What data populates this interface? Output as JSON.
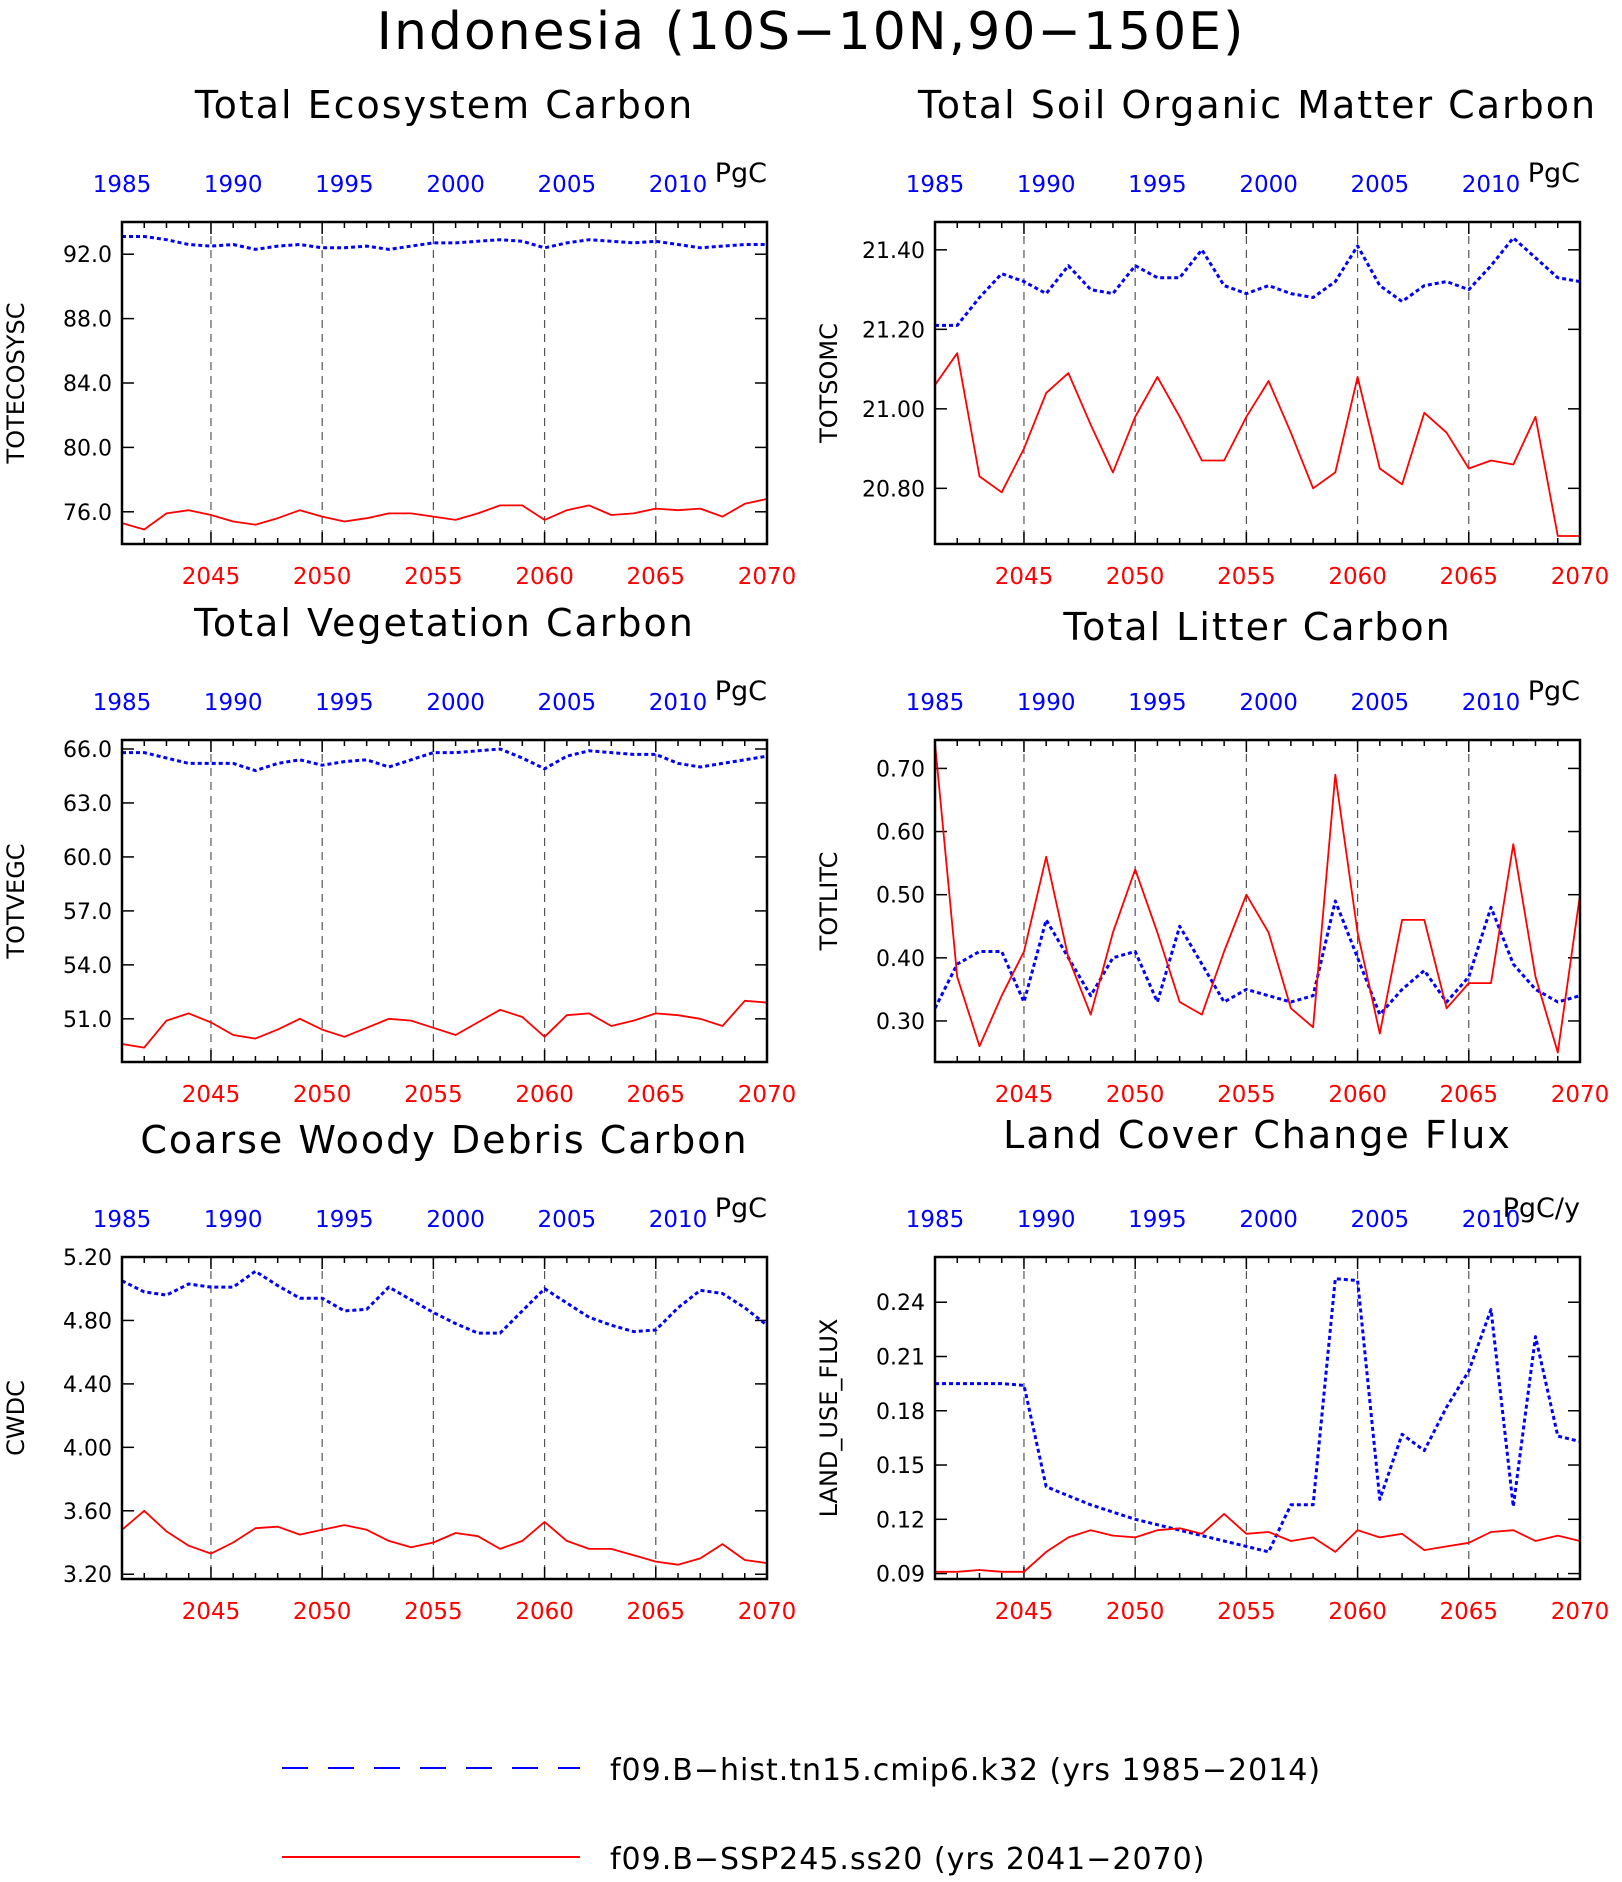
{
  "figure": {
    "title": "Indonesia (10S−10N,90−150E)"
  },
  "colors": {
    "hist": "#0000ff",
    "ssp": "#ff0000",
    "axis": "#000000"
  },
  "legend": {
    "items": [
      {
        "label": "f09.B−hist.tn15.cmip6.k32 (yrs 1985−2014)",
        "style": "dashed",
        "color": "#0000ff"
      },
      {
        "label": "f09.B−SSP245.ss20 (yrs 2041−2070)",
        "style": "solid",
        "color": "#ff0000"
      }
    ]
  },
  "chart_data": [
    {
      "type": "line",
      "title": "Total Ecosystem Carbon",
      "ylabel": "TOTECOSYSC",
      "units": "PgC",
      "top_xticks": [
        "1985",
        "1990",
        "1995",
        "2000",
        "2005",
        "2010"
      ],
      "bottom_xticks": [
        "2045",
        "2050",
        "2055",
        "2060",
        "2065",
        "2070"
      ],
      "yticks": [
        "76.0",
        "80.0",
        "84.0",
        "88.0",
        "92.0"
      ],
      "ylim": [
        74.0,
        94.0
      ],
      "series": [
        {
          "values": [
            93.1,
            93.1,
            92.9,
            92.6,
            92.5,
            92.6,
            92.3,
            92.5,
            92.6,
            92.4,
            92.4,
            92.5,
            92.3,
            92.5,
            92.7,
            92.7,
            92.8,
            92.9,
            92.8,
            92.4,
            92.7,
            92.9,
            92.8,
            92.7,
            92.8,
            92.6,
            92.4,
            92.5,
            92.6,
            92.6
          ]
        },
        {
          "values": [
            75.3,
            74.9,
            75.9,
            76.1,
            75.8,
            75.4,
            75.2,
            75.6,
            76.1,
            75.7,
            75.4,
            75.6,
            75.9,
            75.9,
            75.7,
            75.5,
            75.9,
            76.4,
            76.4,
            75.5,
            76.1,
            76.4,
            75.8,
            75.9,
            76.2,
            76.1,
            76.2,
            75.7,
            76.5,
            76.8
          ]
        }
      ]
    },
    {
      "type": "line",
      "title": "Total Soil Organic Matter Carbon",
      "ylabel": "TOTSOMC",
      "units": "PgC",
      "top_xticks": [
        "1985",
        "1990",
        "1995",
        "2000",
        "2005",
        "2010"
      ],
      "bottom_xticks": [
        "2045",
        "2050",
        "2055",
        "2060",
        "2065",
        "2070"
      ],
      "yticks": [
        "20.80",
        "21.00",
        "21.20",
        "21.40"
      ],
      "ylim": [
        20.66,
        21.47
      ],
      "series": [
        {
          "values": [
            21.21,
            21.21,
            21.28,
            21.34,
            21.32,
            21.29,
            21.36,
            21.3,
            21.29,
            21.36,
            21.33,
            21.33,
            21.4,
            21.31,
            21.29,
            21.31,
            21.29,
            21.28,
            21.32,
            21.41,
            21.31,
            21.27,
            21.31,
            21.32,
            21.3,
            21.36,
            21.43,
            21.38,
            21.33,
            21.32
          ]
        },
        {
          "values": [
            21.06,
            21.14,
            20.83,
            20.79,
            20.9,
            21.04,
            21.09,
            20.96,
            20.84,
            20.98,
            21.08,
            20.98,
            20.87,
            20.87,
            20.98,
            21.07,
            20.94,
            20.8,
            20.84,
            21.08,
            20.85,
            20.81,
            20.99,
            20.94,
            20.85,
            20.87,
            20.86,
            20.98,
            20.68,
            20.68
          ]
        }
      ]
    },
    {
      "type": "line",
      "title": "Total Vegetation Carbon",
      "ylabel": "TOTVEGC",
      "units": "PgC",
      "top_xticks": [
        "1985",
        "1990",
        "1995",
        "2000",
        "2005",
        "2010"
      ],
      "bottom_xticks": [
        "2045",
        "2050",
        "2055",
        "2060",
        "2065",
        "2070"
      ],
      "yticks": [
        "51.0",
        "54.0",
        "57.0",
        "60.0",
        "63.0",
        "66.0"
      ],
      "ylim": [
        48.6,
        66.5
      ],
      "series": [
        {
          "values": [
            65.8,
            65.8,
            65.5,
            65.2,
            65.2,
            65.2,
            64.8,
            65.2,
            65.4,
            65.1,
            65.3,
            65.4,
            65.0,
            65.4,
            65.8,
            65.8,
            65.9,
            66.0,
            65.5,
            64.9,
            65.6,
            65.9,
            65.8,
            65.7,
            65.7,
            65.2,
            65.0,
            65.2,
            65.4,
            65.6
          ]
        },
        {
          "values": [
            49.6,
            49.4,
            50.9,
            51.3,
            50.8,
            50.1,
            49.9,
            50.4,
            51.0,
            50.4,
            50.0,
            50.5,
            51.0,
            50.9,
            50.5,
            50.1,
            50.8,
            51.5,
            51.1,
            50.0,
            51.2,
            51.3,
            50.6,
            50.9,
            51.3,
            51.2,
            51.0,
            50.6,
            52.0,
            51.9
          ]
        }
      ]
    },
    {
      "type": "line",
      "title": "Total Litter Carbon",
      "ylabel": "TOTLITC",
      "units": "PgC",
      "top_xticks": [
        "1985",
        "1990",
        "1995",
        "2000",
        "2005",
        "2010"
      ],
      "bottom_xticks": [
        "2045",
        "2050",
        "2055",
        "2060",
        "2065",
        "2070"
      ],
      "yticks": [
        "0.30",
        "0.40",
        "0.50",
        "0.60",
        "0.70"
      ],
      "ylim": [
        0.235,
        0.745
      ],
      "series": [
        {
          "values": [
            0.32,
            0.39,
            0.41,
            0.41,
            0.33,
            0.46,
            0.4,
            0.34,
            0.4,
            0.41,
            0.33,
            0.45,
            0.39,
            0.33,
            0.35,
            0.34,
            0.33,
            0.34,
            0.49,
            0.4,
            0.31,
            0.35,
            0.38,
            0.33,
            0.37,
            0.48,
            0.39,
            0.35,
            0.33,
            0.34
          ]
        },
        {
          "values": [
            0.74,
            0.37,
            0.26,
            0.34,
            0.41,
            0.56,
            0.4,
            0.31,
            0.44,
            0.54,
            0.44,
            0.33,
            0.31,
            0.41,
            0.5,
            0.44,
            0.32,
            0.29,
            0.69,
            0.44,
            0.28,
            0.46,
            0.46,
            0.32,
            0.36,
            0.36,
            0.58,
            0.37,
            0.25,
            0.5
          ]
        }
      ]
    },
    {
      "type": "line",
      "title": "Coarse Woody Debris Carbon",
      "ylabel": "CWDC",
      "units": "PgC",
      "top_xticks": [
        "1985",
        "1990",
        "1995",
        "2000",
        "2005",
        "2010"
      ],
      "bottom_xticks": [
        "2045",
        "2050",
        "2055",
        "2060",
        "2065",
        "2070"
      ],
      "yticks": [
        "3.20",
        "3.60",
        "4.00",
        "4.40",
        "4.80",
        "5.20"
      ],
      "ylim": [
        3.17,
        5.2
      ],
      "series": [
        {
          "values": [
            5.05,
            4.98,
            4.96,
            5.03,
            5.01,
            5.01,
            5.11,
            5.02,
            4.94,
            4.94,
            4.86,
            4.87,
            5.01,
            4.93,
            4.85,
            4.78,
            4.72,
            4.72,
            4.86,
            5.0,
            4.91,
            4.82,
            4.77,
            4.73,
            4.74,
            4.88,
            4.99,
            4.97,
            4.88,
            4.77
          ]
        },
        {
          "values": [
            3.48,
            3.6,
            3.47,
            3.38,
            3.33,
            3.4,
            3.49,
            3.5,
            3.45,
            3.48,
            3.51,
            3.48,
            3.41,
            3.37,
            3.4,
            3.46,
            3.44,
            3.36,
            3.41,
            3.53,
            3.41,
            3.36,
            3.36,
            3.32,
            3.28,
            3.26,
            3.3,
            3.39,
            3.29,
            3.27
          ]
        }
      ]
    },
    {
      "type": "line",
      "title": "Land Cover Change Flux",
      "ylabel": "LAND_USE_FLUX",
      "units": "PgC/y",
      "top_xticks": [
        "1985",
        "1990",
        "1995",
        "2000",
        "2005",
        "2010"
      ],
      "bottom_xticks": [
        "2045",
        "2050",
        "2055",
        "2060",
        "2065",
        "2070"
      ],
      "yticks": [
        "0.09",
        "0.12",
        "0.15",
        "0.18",
        "0.21",
        "0.24"
      ],
      "ylim": [
        0.087,
        0.265
      ],
      "series": [
        {
          "values": [
            0.195,
            0.195,
            0.195,
            0.195,
            0.194,
            0.138,
            0.133,
            0.128,
            0.124,
            0.12,
            0.117,
            0.114,
            0.111,
            0.108,
            0.105,
            0.102,
            0.128,
            0.128,
            0.253,
            0.252,
            0.131,
            0.167,
            0.158,
            0.182,
            0.202,
            0.236,
            0.127,
            0.221,
            0.166,
            0.163
          ]
        },
        {
          "values": [
            0.091,
            0.091,
            0.092,
            0.091,
            0.091,
            0.102,
            0.11,
            0.114,
            0.111,
            0.11,
            0.114,
            0.115,
            0.112,
            0.123,
            0.112,
            0.113,
            0.108,
            0.11,
            0.102,
            0.114,
            0.11,
            0.112,
            0.103,
            0.105,
            0.107,
            0.113,
            0.114,
            0.108,
            0.111,
            0.108
          ]
        }
      ]
    }
  ]
}
